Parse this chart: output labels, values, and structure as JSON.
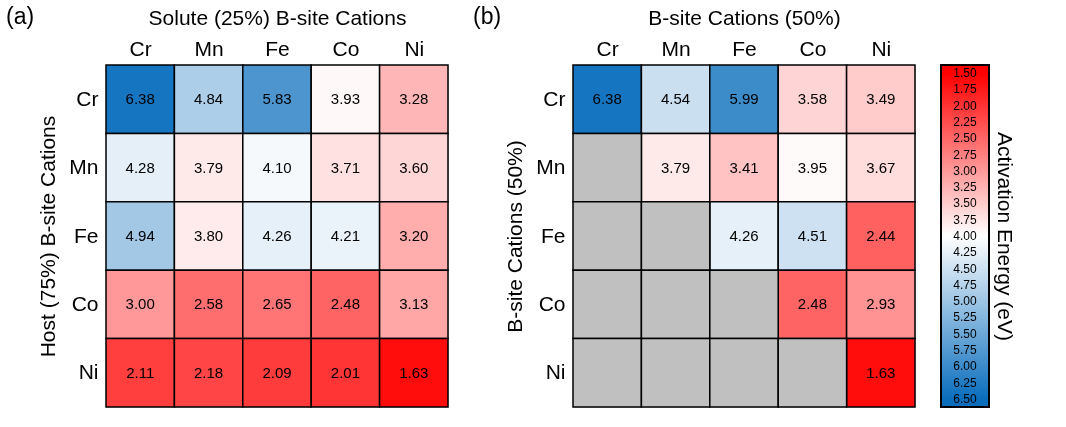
{
  "chart_data": [
    {
      "type": "heatmap",
      "title": "(a)",
      "xlabel": "Solute (25%) B-site Cations",
      "ylabel": "Host (75%) B-site Cations",
      "categories": [
        "Cr",
        "Mn",
        "Fe",
        "Co",
        "Ni"
      ],
      "y_categories": [
        "Cr",
        "Mn",
        "Fe",
        "Co",
        "Ni"
      ],
      "cells": [
        [
          6.38,
          4.84,
          5.83,
          3.93,
          3.28
        ],
        [
          4.28,
          3.79,
          4.1,
          3.71,
          3.6
        ],
        [
          4.94,
          3.8,
          4.26,
          4.21,
          3.2
        ],
        [
          3.0,
          2.58,
          2.65,
          2.48,
          3.13
        ],
        [
          2.11,
          2.18,
          2.09,
          2.01,
          1.63
        ]
      ],
      "cell_labels": [
        [
          "6.38",
          "4.84",
          "5.83",
          "3.93",
          "3.28"
        ],
        [
          "4.28",
          "3.79",
          "4.10",
          "3.71",
          "3.60"
        ],
        [
          "4.94",
          "3.80",
          "4.26",
          "4.21",
          "3.20"
        ],
        [
          "3.00",
          "2.58",
          "2.65",
          "2.48",
          "3.13"
        ],
        [
          "2.11",
          "2.18",
          "2.09",
          "2.01",
          "1.63"
        ]
      ]
    },
    {
      "type": "heatmap",
      "title": "(b)",
      "xlabel": "B-site Cations (50%)",
      "ylabel": "B-site Cations (50%)",
      "clabel": "Activation Energy (eV)",
      "categories": [
        "Cr",
        "Mn",
        "Fe",
        "Co",
        "Ni"
      ],
      "y_categories": [
        "Cr",
        "Mn",
        "Fe",
        "Co",
        "Ni"
      ],
      "cells": [
        [
          6.38,
          4.54,
          5.99,
          3.58,
          3.49
        ],
        [
          null,
          3.79,
          3.41,
          3.95,
          3.67
        ],
        [
          null,
          null,
          4.26,
          4.51,
          2.44
        ],
        [
          null,
          null,
          null,
          2.48,
          2.93
        ],
        [
          null,
          null,
          null,
          null,
          1.63
        ]
      ],
      "cell_labels": [
        [
          "6.38",
          "4.54",
          "5.99",
          "3.58",
          "3.49"
        ],
        [
          null,
          "3.79",
          "3.41",
          "3.95",
          "3.67"
        ],
        [
          null,
          null,
          "4.26",
          "4.51",
          "2.44"
        ],
        [
          null,
          null,
          null,
          "2.48",
          "2.93"
        ],
        [
          null,
          null,
          null,
          null,
          "1.63"
        ]
      ],
      "clim": [
        1.5,
        6.5
      ],
      "cticks": [
        {
          "value": 1.5,
          "label": "1.50"
        },
        {
          "value": 1.75,
          "label": "1.75"
        },
        {
          "value": 2.0,
          "label": "2.00"
        },
        {
          "value": 2.25,
          "label": "2.25"
        },
        {
          "value": 2.5,
          "label": "2.50"
        },
        {
          "value": 2.75,
          "label": "2.75"
        },
        {
          "value": 3.0,
          "label": "3.00"
        },
        {
          "value": 3.25,
          "label": "3.25"
        },
        {
          "value": 3.5,
          "label": "3.50"
        },
        {
          "value": 3.75,
          "label": "3.75"
        },
        {
          "value": 4.0,
          "label": "4.00"
        },
        {
          "value": 4.25,
          "label": "4.25"
        },
        {
          "value": 4.5,
          "label": "4.50"
        },
        {
          "value": 4.75,
          "label": "4.75"
        },
        {
          "value": 5.0,
          "label": "5.00"
        },
        {
          "value": 5.25,
          "label": "5.25"
        },
        {
          "value": 5.5,
          "label": "5.50"
        },
        {
          "value": 5.75,
          "label": "5.75"
        },
        {
          "value": 6.0,
          "label": "6.00"
        },
        {
          "value": 6.25,
          "label": "6.25"
        },
        {
          "value": 6.5,
          "label": "6.50"
        }
      ]
    }
  ]
}
